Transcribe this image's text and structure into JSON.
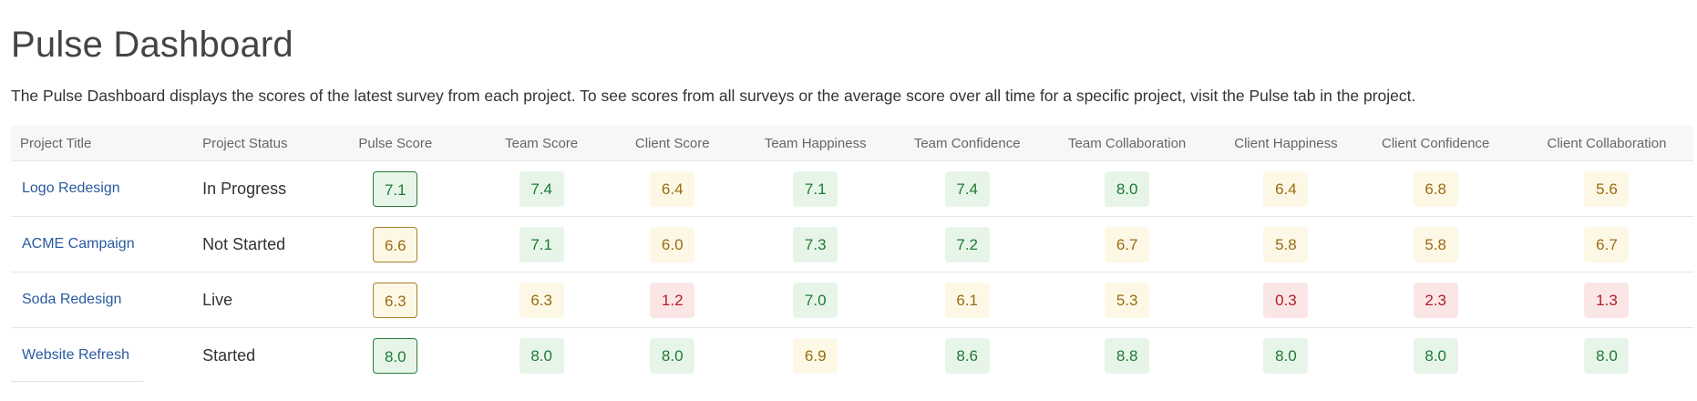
{
  "page": {
    "title": "Pulse Dashboard",
    "description": "The Pulse Dashboard displays the scores of the latest survey from each project. To see scores from all surveys or the average score over all time for a specific project, visit the Pulse tab in the project."
  },
  "colors": {
    "good_bg": "#e7f5e9",
    "good_text": "#1e7a33",
    "mid_bg": "#fdf8e6",
    "mid_text": "#9a6b12",
    "bad_bg": "#fbe6e6",
    "bad_text": "#b01c28",
    "link": "#2a5a9e"
  },
  "table": {
    "headers": [
      "Project Title",
      "Project Status",
      "Pulse Score",
      "Team Score",
      "Client Score",
      "Team Happiness",
      "Team Confidence",
      "Team Collaboration",
      "Client Happiness",
      "Client Confidence",
      "Client Collaboration"
    ],
    "rows": [
      {
        "title": "Logo Redesign",
        "status": "In Progress",
        "scores": [
          {
            "value": "7.1",
            "level": "good"
          },
          {
            "value": "7.4",
            "level": "good"
          },
          {
            "value": "6.4",
            "level": "mid"
          },
          {
            "value": "7.1",
            "level": "good"
          },
          {
            "value": "7.4",
            "level": "good"
          },
          {
            "value": "8.0",
            "level": "good"
          },
          {
            "value": "6.4",
            "level": "mid"
          },
          {
            "value": "6.8",
            "level": "mid"
          },
          {
            "value": "5.6",
            "level": "mid"
          }
        ]
      },
      {
        "title": "ACME Campaign",
        "status": "Not Started",
        "scores": [
          {
            "value": "6.6",
            "level": "mid"
          },
          {
            "value": "7.1",
            "level": "good"
          },
          {
            "value": "6.0",
            "level": "mid"
          },
          {
            "value": "7.3",
            "level": "good"
          },
          {
            "value": "7.2",
            "level": "good"
          },
          {
            "value": "6.7",
            "level": "mid"
          },
          {
            "value": "5.8",
            "level": "mid"
          },
          {
            "value": "5.8",
            "level": "mid"
          },
          {
            "value": "6.7",
            "level": "mid"
          }
        ]
      },
      {
        "title": "Soda Redesign",
        "status": "Live",
        "scores": [
          {
            "value": "6.3",
            "level": "mid"
          },
          {
            "value": "6.3",
            "level": "mid"
          },
          {
            "value": "1.2",
            "level": "bad"
          },
          {
            "value": "7.0",
            "level": "good"
          },
          {
            "value": "6.1",
            "level": "mid"
          },
          {
            "value": "5.3",
            "level": "mid"
          },
          {
            "value": "0.3",
            "level": "bad"
          },
          {
            "value": "2.3",
            "level": "bad"
          },
          {
            "value": "1.3",
            "level": "bad"
          }
        ]
      },
      {
        "title": "Website Refresh",
        "status": "Started",
        "scores": [
          {
            "value": "8.0",
            "level": "good"
          },
          {
            "value": "8.0",
            "level": "good"
          },
          {
            "value": "8.0",
            "level": "good"
          },
          {
            "value": "6.9",
            "level": "mid"
          },
          {
            "value": "8.6",
            "level": "good"
          },
          {
            "value": "8.8",
            "level": "good"
          },
          {
            "value": "8.0",
            "level": "good"
          },
          {
            "value": "8.0",
            "level": "good"
          },
          {
            "value": "8.0",
            "level": "good"
          }
        ]
      }
    ]
  }
}
